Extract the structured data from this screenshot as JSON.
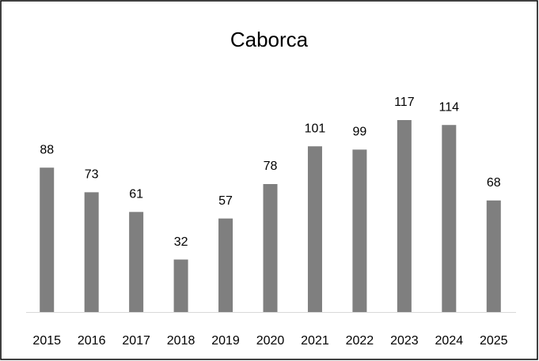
{
  "chart_data": {
    "type": "bar",
    "title": "Caborca",
    "categories": [
      "2015",
      "2016",
      "2017",
      "2018",
      "2019",
      "2020",
      "2021",
      "2022",
      "2023",
      "2024",
      "2025"
    ],
    "values": [
      88,
      73,
      61,
      32,
      57,
      78,
      101,
      99,
      117,
      114,
      68
    ],
    "color": "#7f7f7f"
  }
}
